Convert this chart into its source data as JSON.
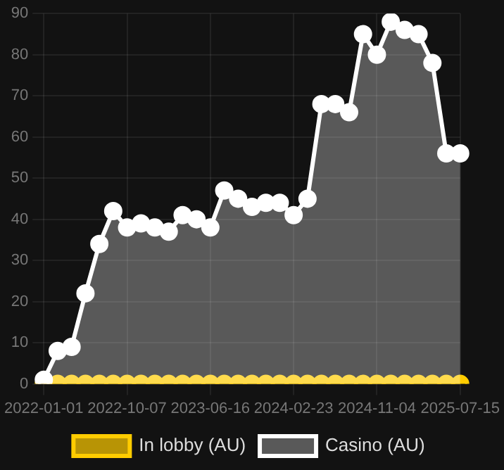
{
  "chart_data": {
    "type": "line",
    "categories": [
      "2022-01-01",
      null,
      null,
      null,
      null,
      null,
      "2022-10-07",
      null,
      null,
      null,
      null,
      null,
      "2023-06-16",
      null,
      null,
      null,
      null,
      null,
      "2024-02-23",
      null,
      null,
      null,
      null,
      null,
      "2024-11-04",
      null,
      null,
      null,
      null,
      null,
      "2025-07-15"
    ],
    "series": [
      {
        "name": "In lobby (AU)",
        "color": "#ffcc00",
        "values": [
          0,
          0,
          0,
          0,
          0,
          0,
          0,
          0,
          0,
          0,
          0,
          0,
          0,
          0,
          0,
          0,
          0,
          0,
          0,
          0,
          0,
          0,
          0,
          0,
          0,
          0,
          0,
          0,
          0,
          0,
          0
        ]
      },
      {
        "name": "Casino (AU)",
        "type": "area",
        "color": "#ffffff",
        "values": [
          1,
          8,
          9,
          22,
          34,
          42,
          38,
          39,
          38,
          37,
          41,
          40,
          38,
          47,
          45,
          43,
          44,
          44,
          41,
          45,
          68,
          68,
          66,
          85,
          80,
          88,
          86,
          85,
          78,
          56,
          56
        ]
      }
    ],
    "ylim": [
      0,
      90
    ],
    "yticks": [
      0,
      10,
      20,
      30,
      40,
      50,
      60,
      70,
      80,
      90
    ],
    "grid": true,
    "legend": "bottom",
    "marker": "circle"
  }
}
